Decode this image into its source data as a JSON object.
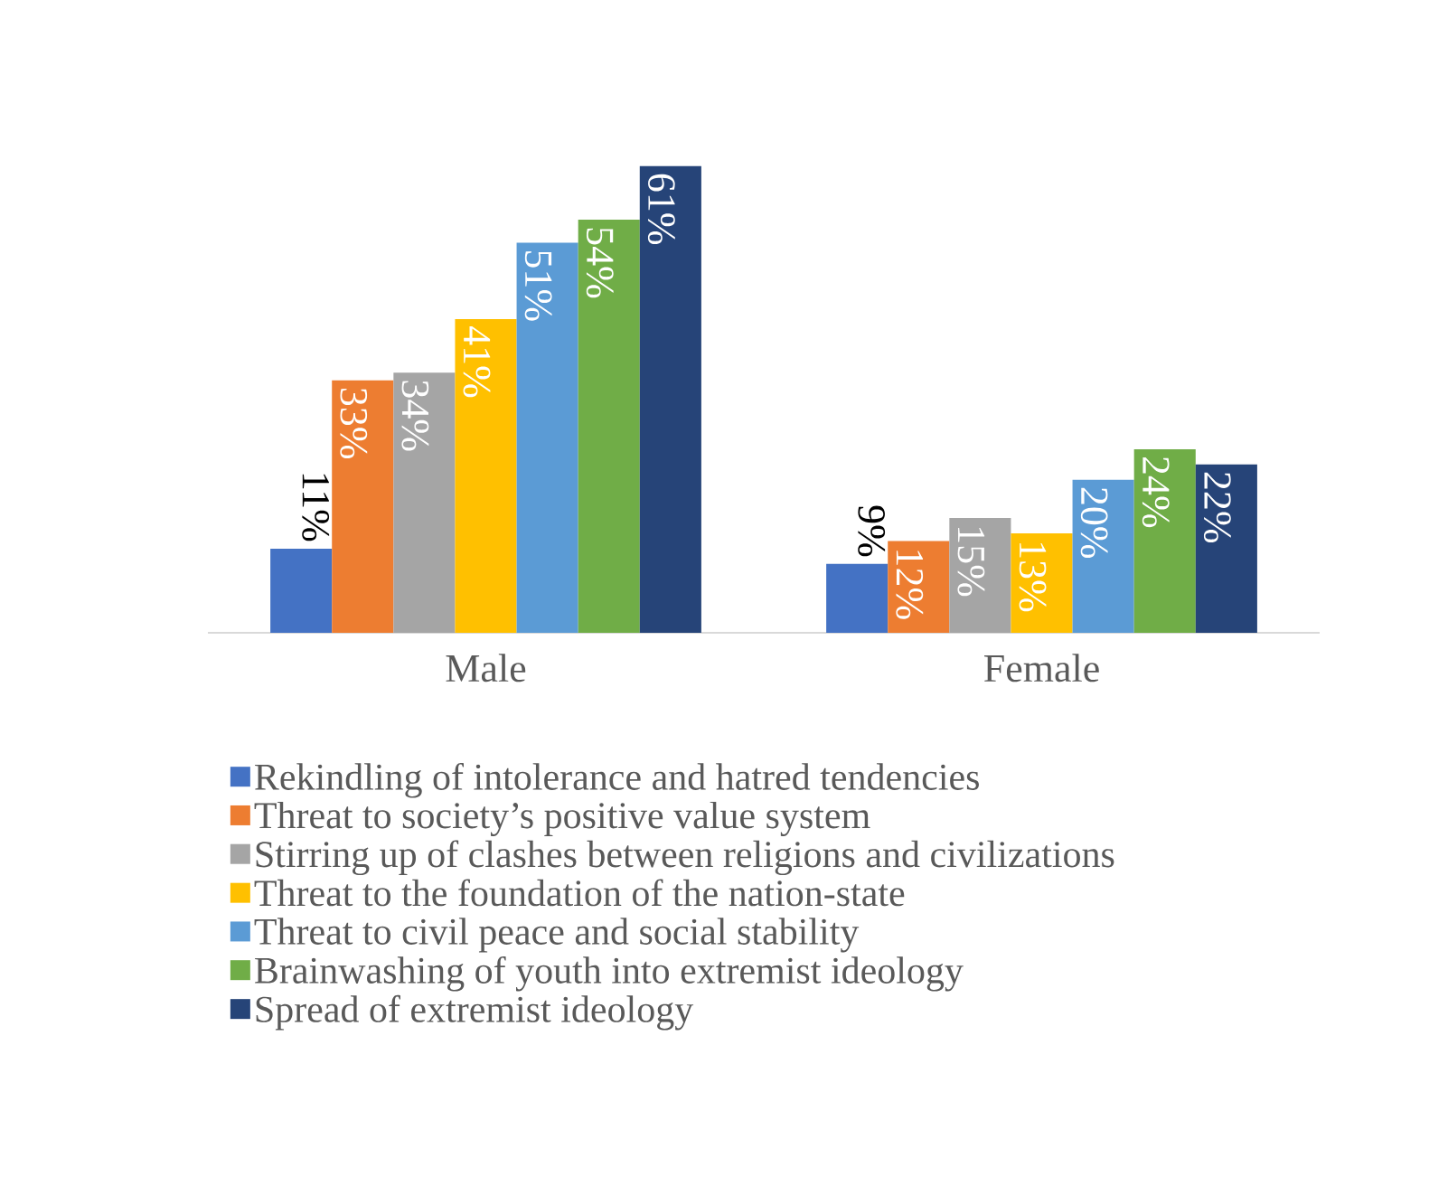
{
  "chart_data": {
    "type": "bar",
    "categories": [
      "Male",
      "Female"
    ],
    "series": [
      {
        "name": "Rekindling of intolerance and hatred tendencies",
        "color": "#4472c4",
        "values": [
          11,
          9
        ],
        "value_labels": [
          "11%",
          "9%"
        ]
      },
      {
        "name": "Threat to society’s positive value system",
        "color": "#ed7d31",
        "values": [
          33,
          12
        ],
        "value_labels": [
          "33%",
          "12%"
        ]
      },
      {
        "name": "Stirring up of clashes between religions and civilizations",
        "color": "#a5a5a5",
        "values": [
          34,
          15
        ],
        "value_labels": [
          "34%",
          "15%"
        ]
      },
      {
        "name": "Threat to the foundation of the nation-state",
        "color": "#ffc000",
        "values": [
          41,
          13
        ],
        "value_labels": [
          "41%",
          "13%"
        ]
      },
      {
        "name": "Threat to civil peace and social stability",
        "color": "#5b9bd5",
        "values": [
          51,
          20
        ],
        "value_labels": [
          "51%",
          "20%"
        ]
      },
      {
        "name": "Brainwashing of youth into extremist ideology",
        "color": "#70ad47",
        "values": [
          54,
          24
        ],
        "value_labels": [
          "54%",
          "24%"
        ]
      },
      {
        "name": "Spread of extremist ideology",
        "color": "#264478",
        "values": [
          61,
          22
        ],
        "value_labels": [
          "61%",
          "22%"
        ]
      }
    ],
    "legend": "bottom"
  }
}
